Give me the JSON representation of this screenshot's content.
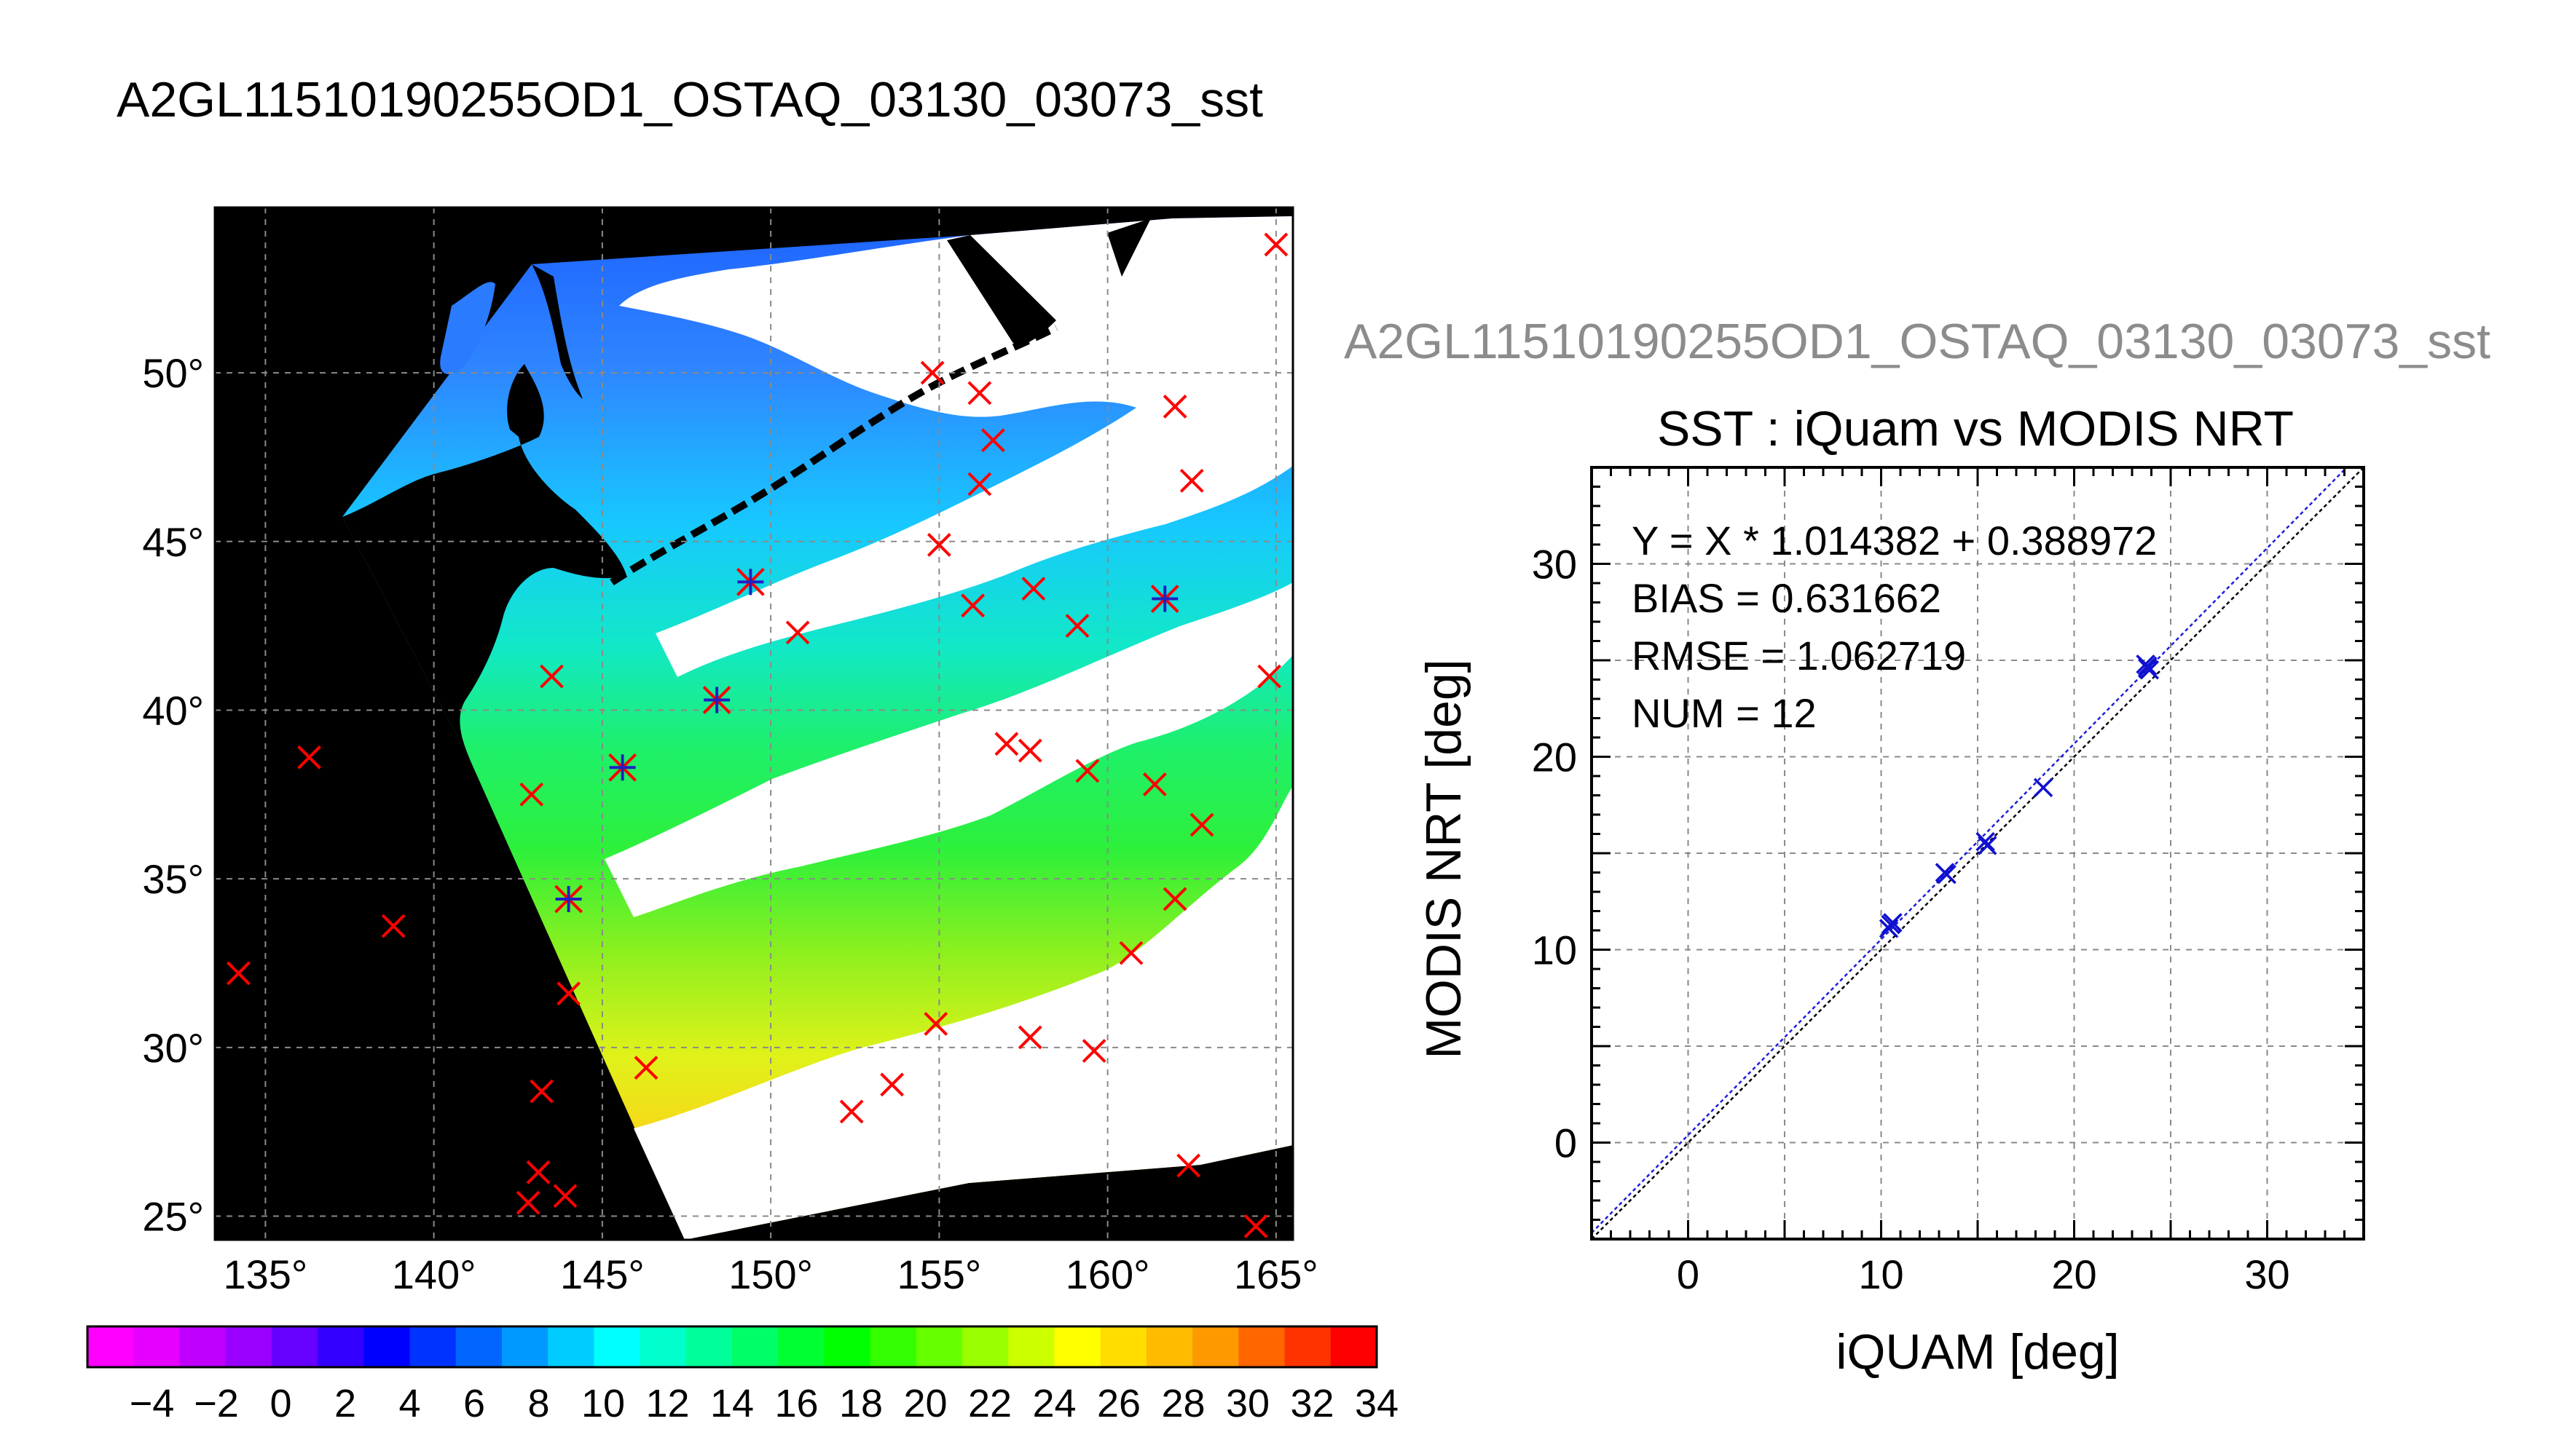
{
  "page": {
    "title": "A2GL11510190255OD1_OSTAQ_03130_03073_sst",
    "subtitle": "A2GL11510190255OD1_OSTAQ_03130_03073_sst"
  },
  "chart_data": [
    {
      "type": "map",
      "title": "A2GL11510190255OD1_OSTAQ_03130_03073_sst",
      "x_ticks": [
        "135°",
        "140°",
        "145°",
        "150°",
        "155°",
        "160°",
        "165°"
      ],
      "y_ticks": [
        "25°",
        "30°",
        "35°",
        "40°",
        "45°",
        "50°"
      ],
      "xlim": [
        133.5,
        165.5
      ],
      "ylim": [
        24.3,
        54.9
      ],
      "grid": true,
      "colorbar": {
        "tick_labels": [
          "−4",
          "−2",
          "0",
          "2",
          "4",
          "6",
          "8",
          "10",
          "12",
          "14",
          "16",
          "18",
          "20",
          "22",
          "24",
          "26",
          "28",
          "30",
          "32",
          "34"
        ],
        "range": [
          -6,
          34
        ],
        "colors": [
          "#ff00ff",
          "#e600ff",
          "#bf00ff",
          "#9900ff",
          "#6600ff",
          "#3300ff",
          "#0000ff",
          "#0033ff",
          "#0066ff",
          "#0099ff",
          "#00ccff",
          "#00ffff",
          "#00ffcc",
          "#00ff99",
          "#00ff66",
          "#00ff33",
          "#00ff00",
          "#33ff00",
          "#66ff00",
          "#99ff00",
          "#ccff00",
          "#ffff00",
          "#ffdd00",
          "#ffbb00",
          "#ff9900",
          "#ff6600",
          "#ff3300",
          "#ff0000"
        ]
      },
      "markers_unmatched": [
        [
          136.3,
          38.6
        ],
        [
          138.8,
          33.6
        ],
        [
          134.2,
          32.2
        ],
        [
          142.9,
          37.5
        ],
        [
          143.5,
          41.0
        ],
        [
          144.0,
          31.6
        ],
        [
          146.3,
          29.4
        ],
        [
          143.2,
          28.7
        ],
        [
          143.1,
          26.3
        ],
        [
          142.8,
          25.4
        ],
        [
          143.9,
          25.6
        ],
        [
          154.8,
          50.0
        ],
        [
          156.2,
          49.4
        ],
        [
          156.6,
          48.0
        ],
        [
          156.2,
          46.7
        ],
        [
          155.0,
          44.9
        ],
        [
          156.0,
          43.1
        ],
        [
          157.8,
          43.6
        ],
        [
          159.1,
          42.5
        ],
        [
          150.8,
          42.3
        ],
        [
          157.0,
          39.0
        ],
        [
          157.7,
          38.8
        ],
        [
          159.4,
          38.2
        ],
        [
          161.4,
          37.8
        ],
        [
          162.8,
          36.6
        ],
        [
          162.0,
          34.4
        ],
        [
          160.7,
          32.8
        ],
        [
          154.9,
          30.7
        ],
        [
          157.7,
          30.3
        ],
        [
          159.6,
          29.9
        ],
        [
          153.6,
          28.9
        ],
        [
          152.4,
          28.1
        ],
        [
          162.4,
          26.5
        ],
        [
          164.4,
          24.7
        ],
        [
          162.0,
          49.0
        ],
        [
          162.5,
          46.8
        ],
        [
          165.0,
          53.8
        ],
        [
          164.8,
          41.0
        ]
      ],
      "markers_matched": [
        [
          149.4,
          43.8
        ],
        [
          148.4,
          40.3
        ],
        [
          145.6,
          38.3
        ],
        [
          144.0,
          34.4
        ],
        [
          161.7,
          43.3
        ]
      ]
    },
    {
      "type": "scatter",
      "title": "SST : iQuam vs MODIS NRT",
      "xlabel": "iQUAM [deg]",
      "ylabel": "MODIS NRT [deg]",
      "xlim": [
        -5,
        35
      ],
      "ylim": [
        -5,
        35
      ],
      "x_ticks": [
        0,
        10,
        20,
        30
      ],
      "y_ticks": [
        0,
        10,
        20,
        30
      ],
      "grid": true,
      "annotations": [
        "Y = X * 1.014382 + 0.388972",
        "BIAS = 0.631662",
        "RMSE = 1.062719",
        "NUM = 12"
      ],
      "fit": {
        "slope": 1.014382,
        "intercept": 0.388972
      },
      "points": [
        {
          "x": 10.5,
          "y": 11.3
        },
        {
          "x": 10.4,
          "y": 11.1
        },
        {
          "x": 10.6,
          "y": 11.4
        },
        {
          "x": 13.4,
          "y": 13.9
        },
        {
          "x": 13.3,
          "y": 14.0
        },
        {
          "x": 15.4,
          "y": 15.6
        },
        {
          "x": 15.5,
          "y": 15.4
        },
        {
          "x": 18.4,
          "y": 18.4
        },
        {
          "x": 23.8,
          "y": 24.6
        },
        {
          "x": 23.7,
          "y": 24.8
        },
        {
          "x": 23.9,
          "y": 24.5
        },
        {
          "x": 23.8,
          "y": 24.7
        }
      ]
    }
  ]
}
